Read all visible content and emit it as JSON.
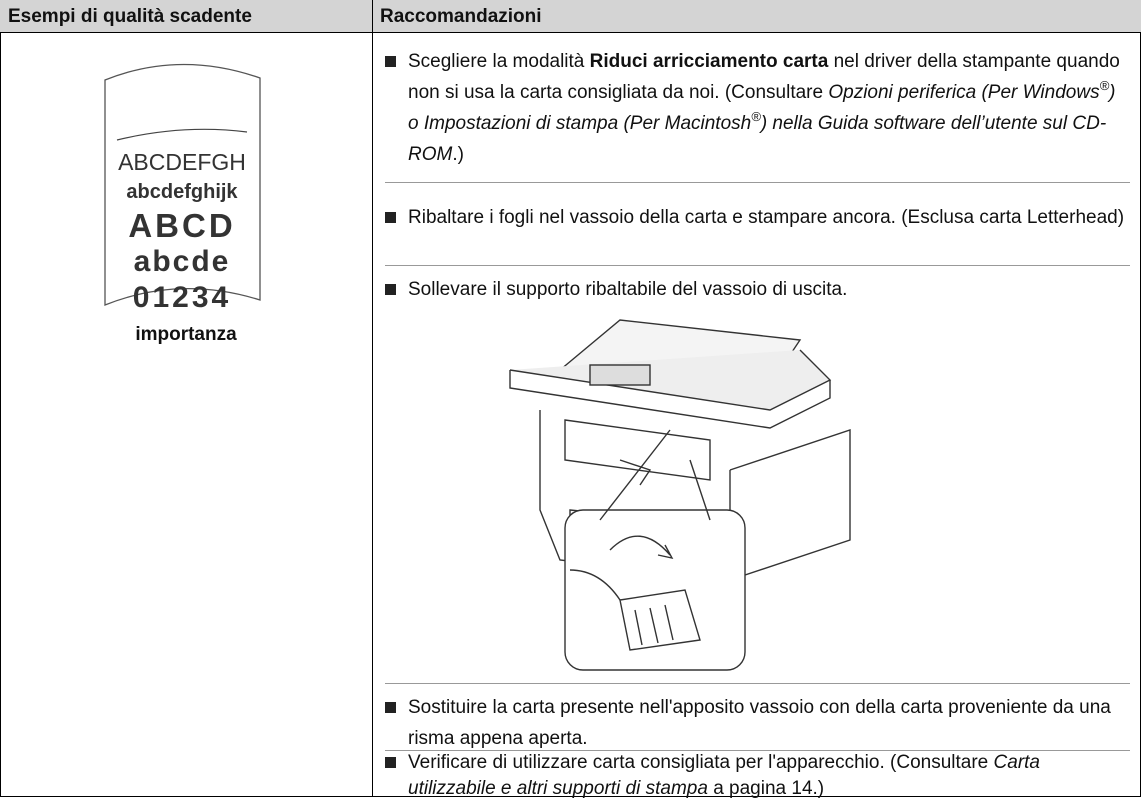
{
  "table": {
    "header": [
      "Esempi di qualità scadente",
      "Raccomandazioni"
    ],
    "sample": {
      "lines": [
        "ABCDEFGH",
        "abcdefghijk",
        "ABCD",
        "abcde",
        "01234"
      ],
      "caption": "importanza"
    },
    "items": [
      [
        {
          "text": "Scegliere la modalità ",
          "style": "n"
        },
        {
          "text": "Riduci arricciamento carta",
          "style": "b"
        },
        {
          "text": " nel driver della stampante quando non si usa la carta consigliata da noi. (Consultare ",
          "style": "n"
        },
        {
          "text": "Opzioni periferica (Per Windows",
          "style": "i"
        },
        {
          "text": "®",
          "style": "sup"
        },
        {
          "text": ") o Impostazioni di stampa (Per Macintosh",
          "style": "i"
        },
        {
          "text": "®",
          "style": "sup"
        },
        {
          "text": ") nella Guida software dell’utente sul CD-ROM",
          "style": "i"
        },
        {
          "text": ".)",
          "style": "n"
        }
      ],
      [
        {
          "text": "Ribaltare i fogli nel vassoio della carta e stampare ancora. (Esclusa carta Letterhead)",
          "style": "n"
        }
      ],
      [
        {
          "text": "Sollevare il supporto ribaltabile del vassoio di uscita.",
          "style": "n"
        }
      ],
      [
        {
          "text": "Sostituire la carta presente nell'apposito vassoio con della carta proveniente da una risma appena aperta.",
          "style": "n"
        }
      ],
      [
        {
          "text": "Verificare di utilizzare carta consigliata per l'apparecchio. (Consultare ",
          "style": "n"
        },
        {
          "text": "Carta utilizzabile e altri supporti di stampa",
          "style": "i"
        },
        {
          "text": " a pagina 14.)",
          "style": "n"
        }
      ]
    ]
  }
}
